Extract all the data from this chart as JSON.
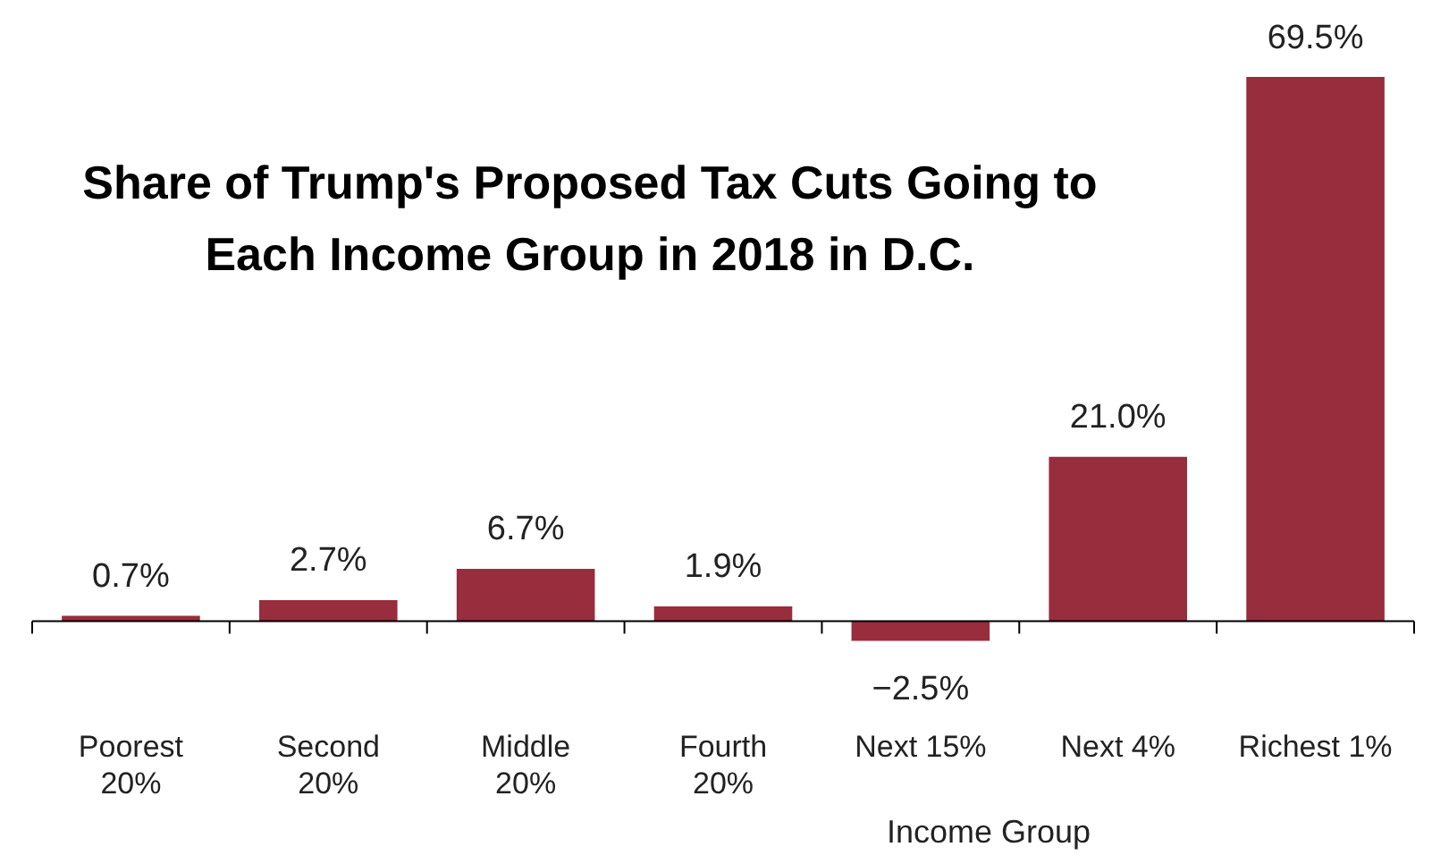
{
  "chart_data": {
    "type": "bar",
    "title": "Share of Trump's Proposed Tax Cuts Going to\nEach Income Group in 2018 in D.C.",
    "xlabel": "Income Group",
    "categories": [
      "Poorest\n20%",
      "Second\n20%",
      "Middle\n20%",
      "Fourth\n20%",
      "Next 15%",
      "Next 4%",
      "Richest 1%"
    ],
    "values": [
      0.7,
      2.7,
      6.7,
      1.9,
      -2.5,
      21.0,
      69.5
    ],
    "value_labels": [
      "0.7%",
      "2.7%",
      "6.7%",
      "1.9%",
      "−2.5%",
      "21.0%",
      "69.5%"
    ],
    "color": "#972d3d",
    "tick_labels": "x",
    "grid": false,
    "legend": false
  }
}
